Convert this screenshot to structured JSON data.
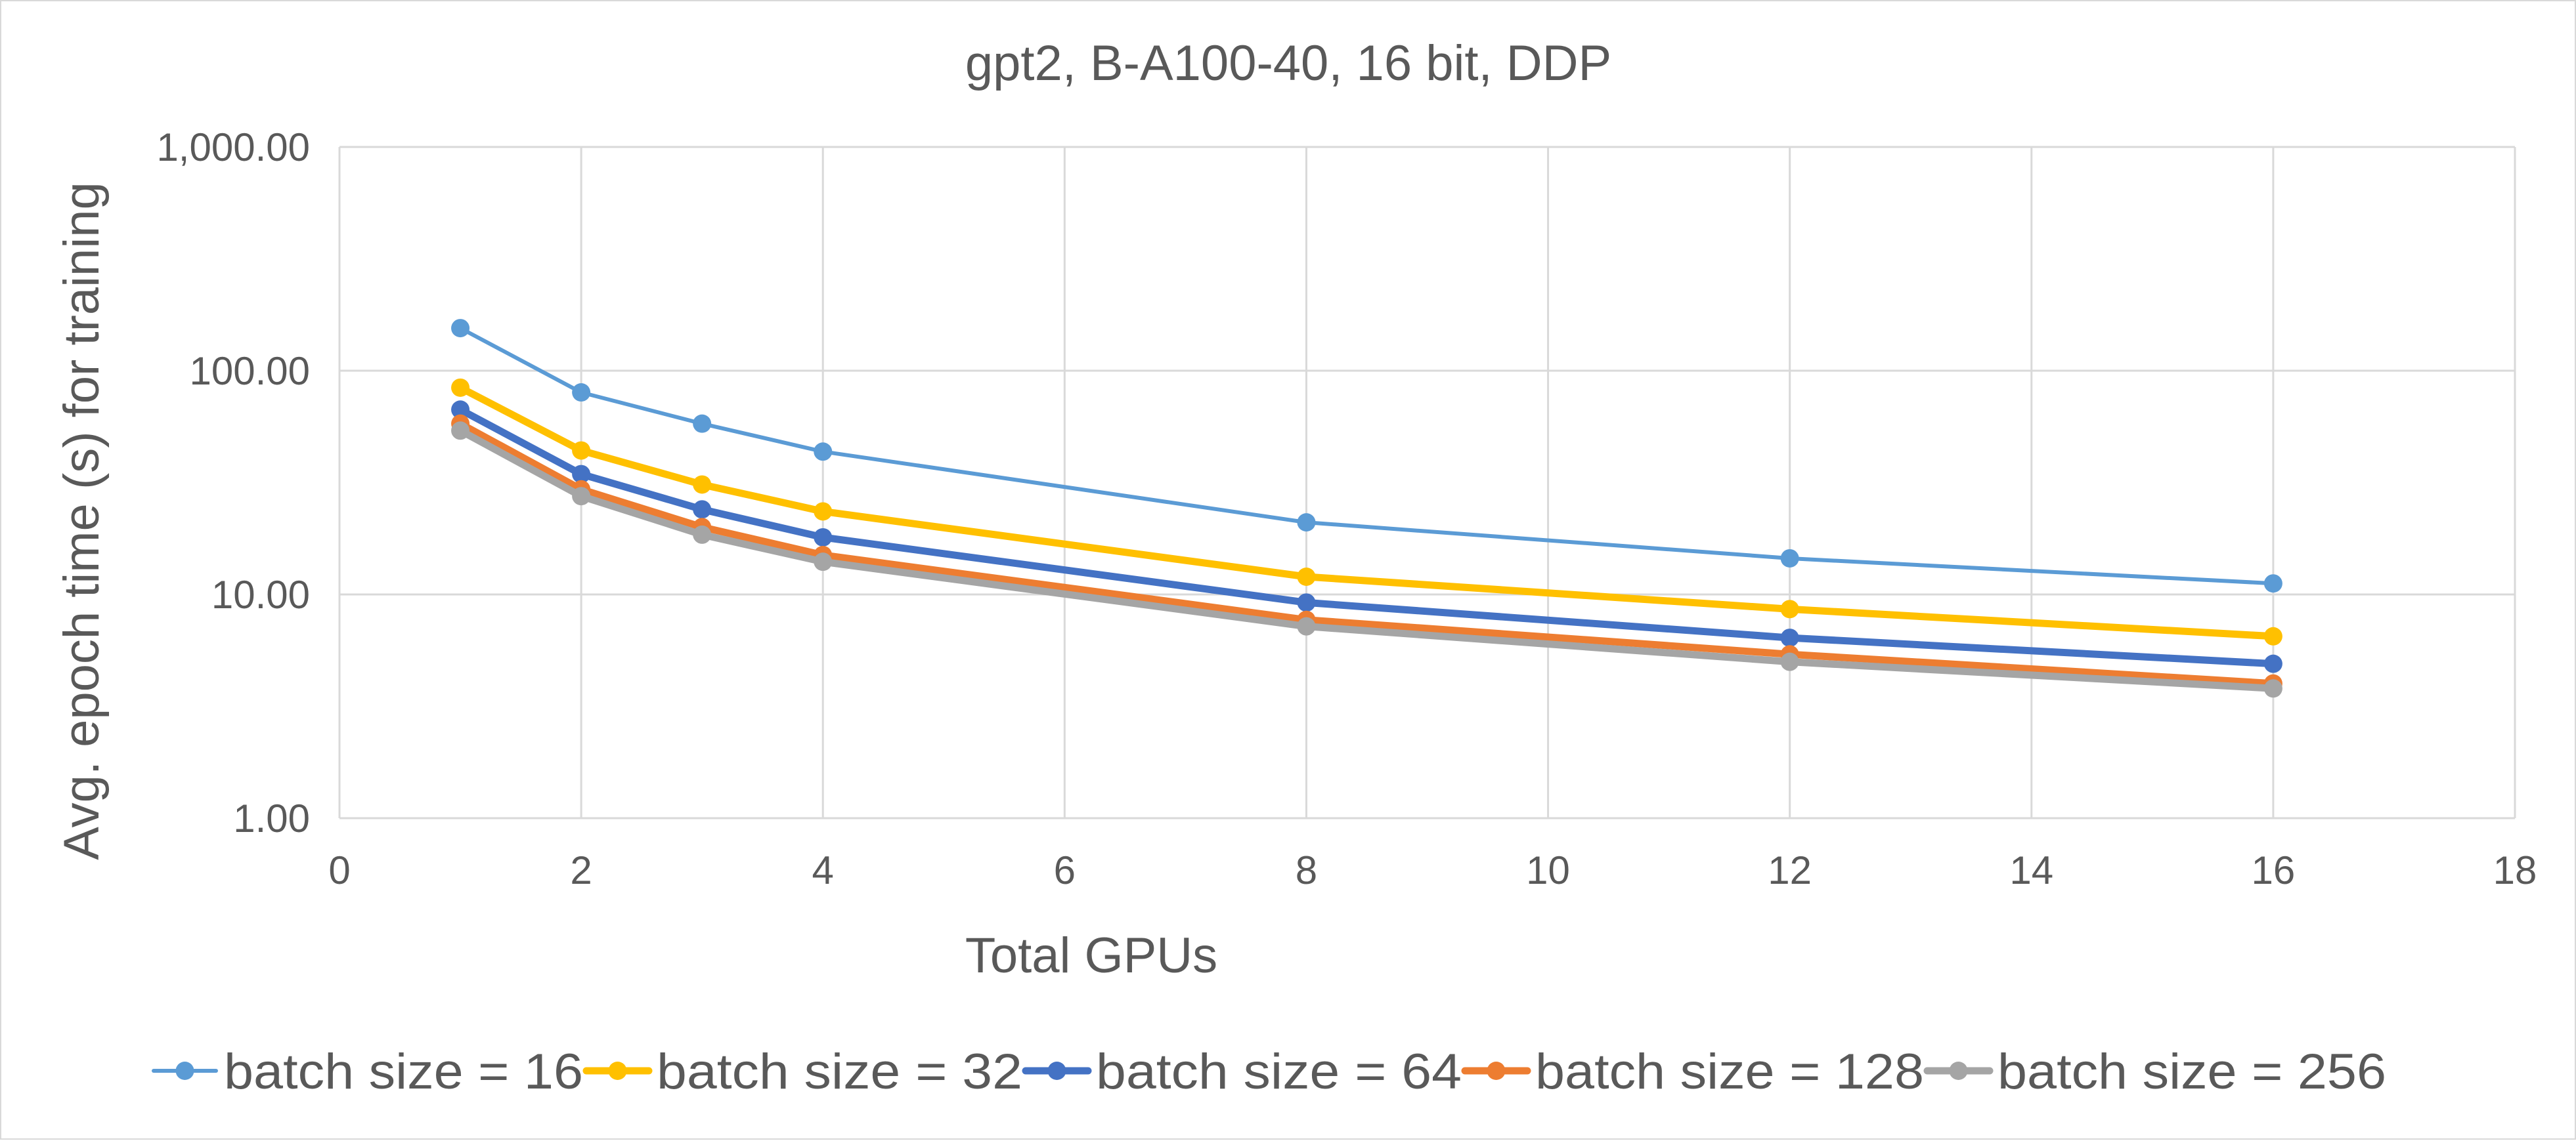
{
  "chart_data": {
    "type": "line",
    "title": "gpt2, B-A100-40, 16 bit, DDP",
    "xlabel": "Total GPUs",
    "ylabel": "Avg. epoch time (s) for training",
    "xlim": [
      0,
      18
    ],
    "ylim": [
      1,
      1000
    ],
    "y_scale": "log",
    "grid": true,
    "legend_position": "bottom",
    "x_ticks": [
      "0",
      "2",
      "4",
      "6",
      "8",
      "10",
      "12",
      "14",
      "16",
      "18"
    ],
    "y_ticks": [
      "1.00",
      "10.00",
      "100.00",
      "1,000.00"
    ],
    "x": [
      1,
      2,
      3,
      4,
      8,
      12,
      16
    ],
    "series": [
      {
        "name": "batch size = 16",
        "color": "#5b9bd5",
        "values": [
          155,
          80,
          58,
          43.5,
          21,
          14.5,
          11.2
        ]
      },
      {
        "name": "batch size = 32",
        "color": "#ffc000",
        "values": [
          84,
          44,
          31,
          23.5,
          12,
          8.6,
          6.5
        ]
      },
      {
        "name": "batch size = 64",
        "color": "#4472c4",
        "values": [
          67,
          34.5,
          24,
          18,
          9.2,
          6.4,
          4.9
        ]
      },
      {
        "name": "batch size = 128",
        "color": "#ed7d31",
        "values": [
          58,
          29.5,
          20,
          15,
          7.7,
          5.4,
          4.0
        ]
      },
      {
        "name": "batch size = 256",
        "color": "#a5a5a5",
        "values": [
          54,
          27.5,
          18.5,
          14,
          7.2,
          5.0,
          3.8
        ]
      }
    ]
  }
}
